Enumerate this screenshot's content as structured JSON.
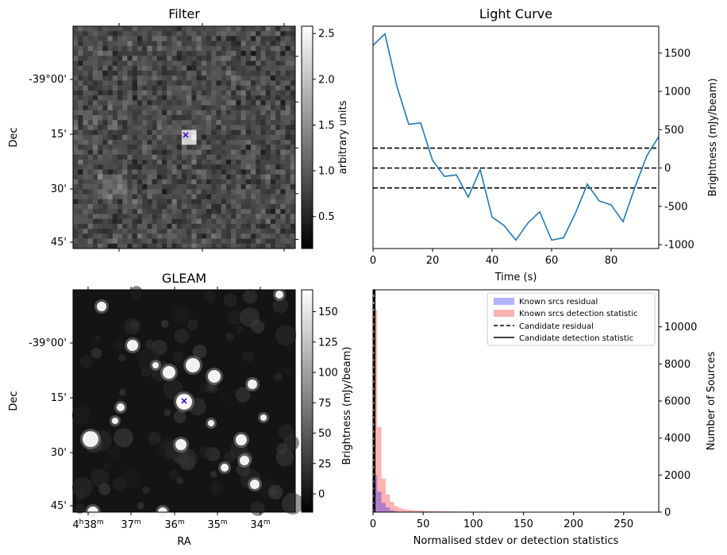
{
  "chart_data": [
    {
      "type": "heatmap",
      "title": "Filter",
      "xlabel": "",
      "ylabel": "Dec",
      "y_ticks": [
        "-39°00'",
        "15'",
        "30'",
        "45'"
      ],
      "colorbar": {
        "label": "arbitrary units",
        "ticks": [
          "0.5",
          "1.0",
          "1.5",
          "2.0",
          "2.5"
        ],
        "range": [
          0.15,
          2.58
        ],
        "colormap": "gray"
      },
      "marker": {
        "symbol": "x",
        "color": "#4b0fc8",
        "label": "candidate"
      }
    },
    {
      "type": "line",
      "title": "Light Curve",
      "xlabel": "Time (s)",
      "ylabel": "Brightness (mJy/beam)",
      "xlim": [
        0,
        96
      ],
      "ylim": [
        -1050,
        1850
      ],
      "x_ticks": [
        "0",
        "20",
        "40",
        "60",
        "80"
      ],
      "y_ticks": [
        "1500",
        "1000",
        "500",
        "0",
        "-500",
        "-1000"
      ],
      "series": [
        {
          "color": "#1f77b4",
          "x": [
            0,
            4,
            8,
            12,
            16,
            20,
            24,
            28,
            32,
            36,
            40,
            44,
            48,
            52,
            56,
            60,
            64,
            68,
            72,
            76,
            80,
            84,
            88,
            92,
            96
          ],
          "y": [
            1600,
            1750,
            1070,
            570,
            590,
            100,
            -110,
            -90,
            -380,
            -20,
            -640,
            -750,
            -940,
            -720,
            -570,
            -940,
            -910,
            -590,
            -210,
            -430,
            -480,
            -700,
            -250,
            160,
            410
          ]
        }
      ],
      "hlines": [
        {
          "y": 260,
          "style": "dashed",
          "color": "#000000"
        },
        {
          "y": 0,
          "style": "dashed",
          "color": "#000000"
        },
        {
          "y": -260,
          "style": "dashed",
          "color": "#000000"
        }
      ]
    },
    {
      "type": "heatmap",
      "title": "GLEAM",
      "xlabel": "RA",
      "ylabel": "Dec",
      "y_ticks": [
        "-39°00'",
        "15'",
        "30'",
        "45'"
      ],
      "x_ticks": [
        {
          "h": "4",
          "hs": "h",
          "m": "38",
          "ms": "m"
        },
        {
          "m": "37",
          "ms": "m"
        },
        {
          "m": "36",
          "ms": "m"
        },
        {
          "m": "35",
          "ms": "m"
        },
        {
          "m": "34",
          "ms": "m"
        }
      ],
      "colorbar": {
        "label": "Brightness (mJy/beam)",
        "ticks": [
          "150",
          "125",
          "100",
          "75",
          "50",
          "25",
          "0"
        ],
        "range": [
          -15,
          168
        ],
        "colormap": "gray"
      },
      "marker": {
        "symbol": "x",
        "color": "#4b0fc8",
        "label": "candidate"
      }
    },
    {
      "type": "bar",
      "title": "",
      "xlabel": "Normalised stdev or detection statistics",
      "ylabel": "Number of Sources",
      "xlim": [
        0,
        285
      ],
      "ylim": [
        0,
        12000
      ],
      "x_ticks": [
        "0",
        "50",
        "100",
        "150",
        "200",
        "250"
      ],
      "y_ticks": [
        "0",
        "2000",
        "4000",
        "6000",
        "8000",
        "10000"
      ],
      "bin_width": 4.2,
      "series": [
        {
          "name": "Known srcs residual",
          "color": "#0000ff",
          "alpha": 0.3,
          "bin_starts": [
            0,
            4.2,
            8.4,
            12.6,
            16.8,
            21
          ],
          "counts": [
            2000,
            1100,
            500,
            250,
            100,
            40
          ]
        },
        {
          "name": "Known srcs detection statistic",
          "color": "#ff0000",
          "alpha": 0.3,
          "bin_starts": [
            0,
            4.2,
            8.4,
            12.6,
            16.8,
            21,
            25.2,
            29.4,
            33.6,
            37.8,
            42,
            46.2,
            50.4,
            54.6,
            58.8,
            63,
            67.2,
            71.4,
            75.6,
            79.8,
            84,
            88.2,
            92.4,
            96.6,
            100.8,
            105,
            109.2,
            113.4,
            117.6,
            121.8,
            126,
            130.2,
            134.4,
            138.6,
            142.8,
            147,
            151.2,
            155.4,
            159.6,
            163.8,
            168,
            172.2,
            176.4,
            180.6,
            184.8,
            189,
            193.2,
            197.4,
            201.6,
            205.8,
            210,
            214.2,
            218.4,
            222.6,
            226.8,
            231,
            235.2,
            239.4,
            243.6,
            247.8,
            252,
            256.2,
            260.4,
            264.6,
            268.8,
            273,
            277.2
          ],
          "counts": [
            10900,
            4600,
            1800,
            950,
            550,
            320,
            220,
            160,
            120,
            100,
            90,
            80,
            70,
            60,
            55,
            50,
            45,
            40,
            38,
            35,
            33,
            31,
            29,
            27,
            25,
            24,
            23,
            22,
            21,
            20,
            20,
            19,
            18,
            18,
            17,
            17,
            16,
            16,
            15,
            15,
            14,
            14,
            13,
            13,
            12,
            12,
            12,
            11,
            11,
            11,
            10,
            10,
            10,
            9,
            9,
            9,
            8,
            8,
            8,
            8,
            7,
            7,
            7,
            7,
            6,
            6,
            6
          ]
        }
      ],
      "vlines": [
        {
          "name": "Candidate residual",
          "x": 1.0,
          "style": "dashed",
          "color": "#000000"
        },
        {
          "name": "Candidate detection statistic",
          "x": 1.8,
          "style": "solid",
          "color": "#000000"
        }
      ],
      "legend_position": "top-right"
    }
  ]
}
